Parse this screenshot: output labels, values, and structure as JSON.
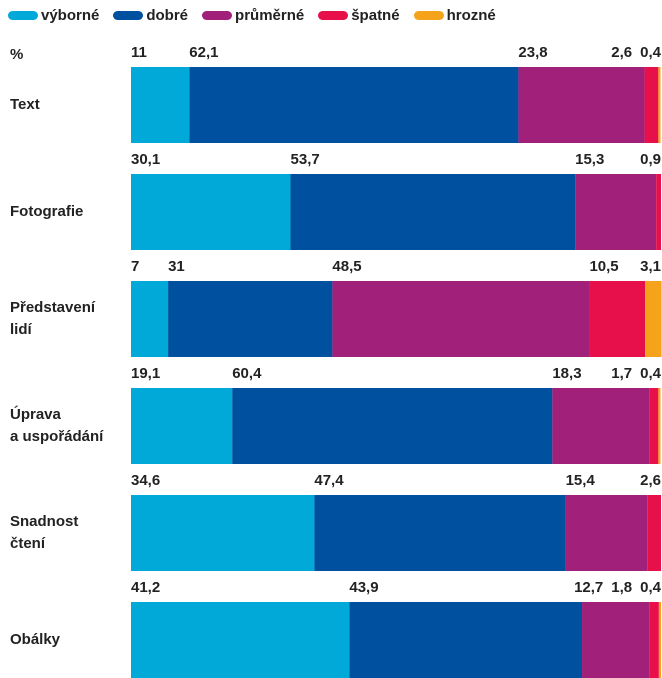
{
  "chart_data": {
    "type": "stacked-barh",
    "unit_label": "%",
    "xlim": [
      0,
      100
    ],
    "categories": [
      "Text",
      "Fotografie",
      "Představení\nlidí",
      "Úprava\na uspořádání",
      "Snadnost\nčtení",
      "Obálky"
    ],
    "series": [
      {
        "name": "výborné",
        "color": "#00a9d8",
        "values": [
          11,
          30.1,
          7,
          19.1,
          34.6,
          41.2
        ],
        "value_labels": [
          "11",
          "30,1",
          "7",
          "19,1",
          "34,6",
          "41,2"
        ]
      },
      {
        "name": "dobré",
        "color": "#0050a0",
        "values": [
          62.1,
          53.7,
          31,
          60.4,
          47.4,
          43.9
        ],
        "value_labels": [
          "62,1",
          "53,7",
          "31",
          "60,4",
          "47,4",
          "43,9"
        ]
      },
      {
        "name": "průměrné",
        "color": "#a0207a",
        "values": [
          23.8,
          15.3,
          48.5,
          18.3,
          15.4,
          12.7
        ],
        "value_labels": [
          "23,8",
          "15,3",
          "48,5",
          "18,3",
          "15,4",
          "12,7"
        ]
      },
      {
        "name": "špatné",
        "color": "#e8104a",
        "values": [
          2.6,
          0.9,
          10.5,
          1.7,
          2.6,
          1.8
        ],
        "value_labels": [
          "2,6",
          "0,9",
          "10,5",
          "1,7",
          "2,6",
          "1,8"
        ]
      },
      {
        "name": "hrozné",
        "color": "#f5a31a",
        "values": [
          0.4,
          null,
          3.1,
          0.4,
          null,
          0.4
        ],
        "value_labels": [
          "0,4",
          null,
          "3,1",
          "0,4",
          null,
          "0,4"
        ]
      }
    ]
  }
}
